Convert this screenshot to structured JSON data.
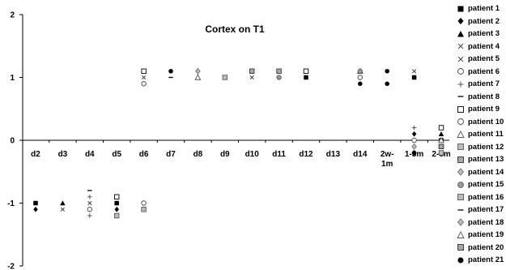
{
  "chart_data": {
    "type": "scatter",
    "title": "Cortex on T1",
    "xlabel": "",
    "ylabel": "",
    "ylim": [
      -2,
      2
    ],
    "y_ticks": [
      "2",
      "1",
      "0",
      "-1",
      "-2"
    ],
    "categories": [
      "d2",
      "d3",
      "d4",
      "d5",
      "d6",
      "d7",
      "d8",
      "d9",
      "d10",
      "d11",
      "d12",
      "d13",
      "d14",
      "2w-1m",
      "1-3m",
      "2-8m"
    ],
    "grid": false,
    "legend_position": "right",
    "series": [
      {
        "name": "patient 1",
        "marker": "filled-square",
        "points": [
          [
            "d2",
            -1
          ],
          [
            "d5",
            -1
          ],
          [
            "d12",
            1
          ],
          [
            "1-3m",
            1
          ],
          [
            "2-8m",
            0
          ]
        ]
      },
      {
        "name": "patient 2",
        "marker": "filled-diamond",
        "points": [
          [
            "d2",
            -1.1
          ],
          [
            "d5",
            -1.1
          ],
          [
            "1-3m",
            0.1
          ],
          [
            "2-8m",
            -0.1
          ]
        ]
      },
      {
        "name": "patient 3",
        "marker": "filled-triangle",
        "points": [
          [
            "d3",
            -1
          ],
          [
            "2-8m",
            0.1
          ]
        ]
      },
      {
        "name": "patient 4",
        "marker": "x",
        "points": [
          [
            "d3",
            -1.1
          ],
          [
            "d6",
            1
          ],
          [
            "1-3m",
            1.1
          ]
        ]
      },
      {
        "name": "patient 5",
        "marker": "x",
        "points": [
          [
            "d4",
            -1
          ],
          [
            "d10",
            1
          ]
        ]
      },
      {
        "name": "patient 6",
        "marker": "open-circle",
        "points": [
          [
            "d4",
            -1.1
          ],
          [
            "d6",
            -1
          ],
          [
            "d14",
            1
          ]
        ]
      },
      {
        "name": "patient 7",
        "marker": "plus",
        "points": [
          [
            "d4",
            -0.9
          ],
          [
            "d4",
            -1.2
          ],
          [
            "1-3m",
            0.2
          ]
        ]
      },
      {
        "name": "patient 8",
        "marker": "dash",
        "points": [
          [
            "d7",
            1
          ]
        ]
      },
      {
        "name": "patient 9",
        "marker": "open-square",
        "points": [
          [
            "d5",
            -0.9
          ],
          [
            "d6",
            1.1
          ],
          [
            "d12",
            1.1
          ],
          [
            "2-8m",
            0.2
          ]
        ]
      },
      {
        "name": "patient 10",
        "marker": "open-circle",
        "points": [
          [
            "d6",
            0.9
          ],
          [
            "1-3m",
            0
          ]
        ]
      },
      {
        "name": "patient 11",
        "marker": "open-triangle",
        "points": [
          [
            "d8",
            1
          ],
          [
            "d14",
            1.1
          ]
        ]
      },
      {
        "name": "patient 12",
        "marker": "gray-square",
        "points": [
          [
            "d9",
            1
          ]
        ]
      },
      {
        "name": "patient 13",
        "marker": "hatched-square",
        "points": [
          [
            "d10",
            1.1
          ],
          [
            "d11",
            1.1
          ],
          [
            "2-8m",
            -0.1
          ]
        ]
      },
      {
        "name": "patient 14",
        "marker": "gray-diamond",
        "points": [
          [
            "d8",
            1.1
          ],
          [
            "1-3m",
            -0.1
          ]
        ]
      },
      {
        "name": "patient 15",
        "marker": "gray-circle",
        "points": [
          [
            "d11",
            1
          ],
          [
            "d14",
            1.1
          ]
        ]
      },
      {
        "name": "patient 16",
        "marker": "gray-square",
        "points": [
          [
            "d5",
            -1.2
          ],
          [
            "d6",
            -1.1
          ],
          [
            "2-8m",
            -0.2
          ]
        ]
      },
      {
        "name": "patient 17",
        "marker": "dash",
        "points": [
          [
            "d4",
            -0.8
          ]
        ]
      },
      {
        "name": "patient 18",
        "marker": "gray-diamond",
        "points": [
          [
            "1-3m",
            -0.2
          ]
        ]
      },
      {
        "name": "patient 19",
        "marker": "open-triangle",
        "points": [
          [
            "2-8m",
            0
          ]
        ]
      },
      {
        "name": "patient 20",
        "marker": "hatched-square",
        "points": [
          [
            "2-8m",
            -0.1
          ]
        ]
      },
      {
        "name": "patient 21",
        "marker": "filled-circle",
        "points": [
          [
            "d7",
            1.1
          ],
          [
            "d14",
            0.9
          ],
          [
            "2w-1m",
            0.9
          ],
          [
            "2w-1m",
            1.1
          ],
          [
            "1-3m",
            -0.2
          ]
        ]
      }
    ]
  }
}
